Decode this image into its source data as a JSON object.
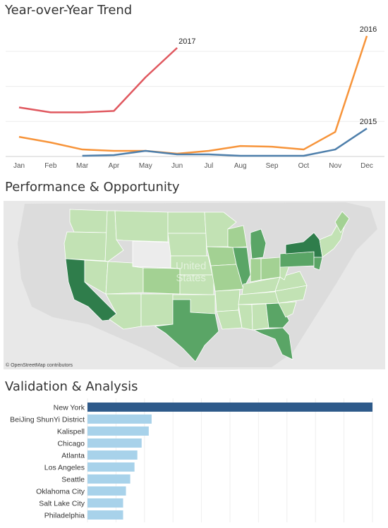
{
  "sections": {
    "trend_title": "Year-over-Year Trend",
    "map_title": "Performance & Opportunity",
    "bar_title": "Validation & Analysis"
  },
  "map": {
    "credit": "© OpenStreetMap contributors",
    "country_label_line1": "United",
    "country_label_line2": "States",
    "colors": {
      "background": "#e8e8e8",
      "light": "#c2e2b4",
      "medium": "#a3d193",
      "dark": "#5aa566",
      "darkest": "#2f7d4b",
      "none": "#ececec"
    },
    "highlighted_states": [
      "California",
      "New York",
      "Texas",
      "Illinois",
      "Michigan",
      "Florida",
      "Pennsylvania",
      "Georgia"
    ]
  },
  "chart_data": [
    {
      "type": "line",
      "title": "Year-over-Year Trend",
      "categories": [
        "Jan",
        "Feb",
        "Mar",
        "Apr",
        "May",
        "Jun",
        "Jul",
        "Aug",
        "Sep",
        "Oct",
        "Nov",
        "Dec"
      ],
      "ylim": [
        0,
        175
      ],
      "grid": true,
      "series": [
        {
          "name": "2017",
          "color": "#e0585f",
          "values": [
            70,
            63,
            63,
            65,
            113,
            155,
            null,
            null,
            null,
            null,
            null,
            null
          ]
        },
        {
          "name": "2016",
          "color": "#f7943a",
          "values": [
            28,
            20,
            10,
            8,
            8,
            4,
            8,
            15,
            14,
            10,
            35,
            172
          ]
        },
        {
          "name": "2015",
          "color": "#4e7fab",
          "values": [
            null,
            null,
            1,
            2,
            8,
            3,
            3,
            1,
            1,
            1,
            10,
            40
          ]
        }
      ]
    },
    {
      "type": "bar",
      "title": "Validation & Analysis",
      "orientation": "horizontal",
      "categories": [
        "New York",
        "BeiJing ShunYi District",
        "Kalispell",
        "Chicago",
        "Atlanta",
        "Los Angeles",
        "Seattle",
        "Oklahoma City",
        "Salt Lake City",
        "Philadelphia"
      ],
      "values": [
        100,
        22.5,
        21.5,
        19,
        17.5,
        16.5,
        15,
        13.5,
        12.5,
        12.5
      ],
      "colors": {
        "highlight": "#2e5a8a",
        "default": "#a8d2ea"
      },
      "grid": true
    }
  ]
}
